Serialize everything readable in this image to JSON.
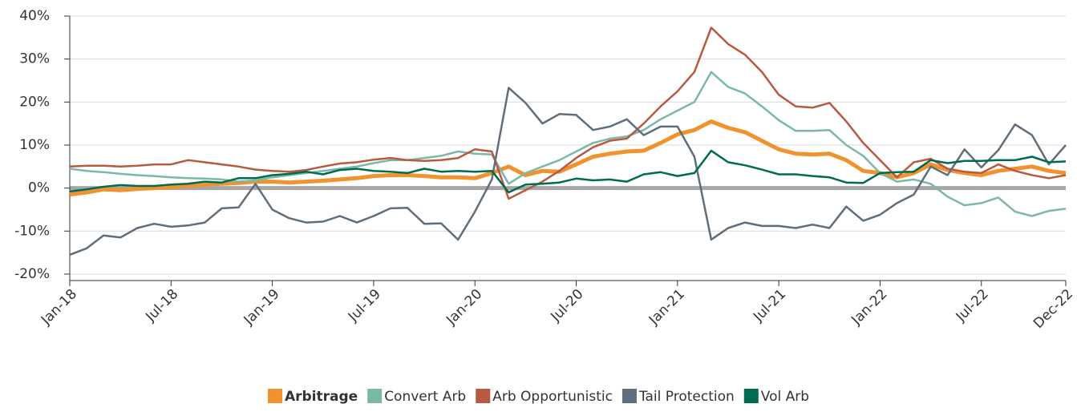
{
  "chart_data": {
    "type": "line",
    "categories": [
      "Jan-18",
      null,
      null,
      null,
      null,
      null,
      "Jul-18",
      null,
      null,
      null,
      null,
      null,
      "Jan-19",
      null,
      null,
      null,
      null,
      null,
      "Jul-19",
      null,
      null,
      null,
      null,
      null,
      "Jan-20",
      null,
      null,
      null,
      null,
      null,
      "Jul-20",
      null,
      null,
      null,
      null,
      null,
      "Jan-21",
      null,
      null,
      null,
      null,
      null,
      "Jul-21",
      null,
      null,
      null,
      null,
      null,
      "Jan-22",
      null,
      null,
      null,
      null,
      null,
      "Jul-22",
      null,
      null,
      null,
      null,
      "Dec-22"
    ],
    "ylim": [
      -21.5,
      40
    ],
    "yticks": [
      {
        "value": -20,
        "label": "-20%"
      },
      {
        "value": -10,
        "label": "-10%"
      },
      {
        "value": 0,
        "label": "0%"
      },
      {
        "value": 10,
        "label": "10%"
      },
      {
        "value": 20,
        "label": "20%"
      },
      {
        "value": 30,
        "label": "30%"
      },
      {
        "value": 40,
        "label": "40%"
      }
    ],
    "grid": true,
    "legend": "bottom",
    "series": [
      {
        "name": "Arbitrage",
        "color": "#f0922e",
        "width": 5,
        "values": [
          -1.5,
          -1,
          -0.3,
          -0.5,
          -0.2,
          0,
          0.2,
          0.5,
          0.8,
          1,
          1.2,
          1.5,
          1.5,
          1.3,
          1.5,
          1.7,
          2,
          2.3,
          2.8,
          3,
          3,
          2.8,
          2.5,
          2.5,
          2.3,
          3.5,
          5,
          3,
          4,
          3.8,
          5.5,
          7.3,
          8,
          8.5,
          8.7,
          10.5,
          12.5,
          13.5,
          15.5,
          14,
          13,
          11,
          9,
          8,
          7.8,
          8,
          6.5,
          4,
          3.5,
          2.5,
          3.5,
          5.5,
          4.2,
          3.5,
          3,
          4,
          4.5,
          5,
          4,
          3.5
        ]
      },
      {
        "name": "Convert Arb",
        "color": "#7ab8a8",
        "width": 2.5,
        "values": [
          4.5,
          4,
          3.7,
          3.3,
          3,
          2.8,
          2.5,
          2.3,
          2.2,
          2,
          1.5,
          1.8,
          2.5,
          3,
          3.5,
          4,
          4.5,
          5,
          5.8,
          6.5,
          6.5,
          7,
          7.5,
          8.5,
          8,
          7.8,
          1,
          3.5,
          5,
          6.5,
          8.5,
          10.5,
          11.5,
          12,
          13.5,
          16,
          18,
          20,
          27,
          23.5,
          22,
          19,
          15.8,
          13.3,
          13.3,
          13.5,
          10,
          7.5,
          3.5,
          1.5,
          2,
          1,
          -2,
          -4,
          -3.5,
          -2.2,
          -5.5,
          -6.5,
          -5.3,
          -4.8
        ]
      },
      {
        "name": "Arb Opportunistic",
        "color": "#b85a40",
        "width": 2.5,
        "values": [
          5,
          5.2,
          5.2,
          5,
          5.2,
          5.5,
          5.5,
          6.5,
          6,
          5.5,
          5,
          4.3,
          4,
          3.8,
          4.2,
          5,
          5.7,
          6,
          6.6,
          7,
          6.5,
          6.3,
          6.5,
          7,
          9,
          8.5,
          -2.5,
          -0.5,
          1.5,
          4,
          7,
          9.5,
          11,
          11.5,
          15,
          19,
          22.5,
          27,
          37.3,
          33.5,
          31,
          27,
          21.7,
          19,
          18.7,
          19.8,
          15.5,
          10.5,
          6.5,
          2.5,
          6,
          6.8,
          4.5,
          3.8,
          3.5,
          5.5,
          4,
          3,
          2.3,
          3
        ]
      },
      {
        "name": "Tail Protection",
        "color": "#5f6e7a",
        "width": 2.5,
        "values": [
          -15.5,
          -14,
          -11,
          -11.5,
          -9.3,
          -8.3,
          -9,
          -8.7,
          -8,
          -4.7,
          -4.5,
          1,
          -5,
          -7,
          -8,
          -7.8,
          -6.5,
          -8,
          -6.5,
          -4.7,
          -4.6,
          -8.3,
          -8.2,
          -12,
          -5.5,
          2,
          23.3,
          19.8,
          15,
          17.2,
          17,
          13.5,
          14.3,
          16,
          12.3,
          14.3,
          14.3,
          7.3,
          -12,
          -9.3,
          -8,
          -8.8,
          -8.8,
          -9.3,
          -8.5,
          -9.3,
          -4.3,
          -7.6,
          -6.2,
          -3.5,
          -1.5,
          5,
          3,
          9,
          4.8,
          8.8,
          14.8,
          12.3,
          5.5,
          10
        ]
      },
      {
        "name": "Vol Arb",
        "color": "#006b4f",
        "width": 2.5,
        "values": [
          -0.8,
          -0.3,
          0.3,
          0.7,
          0.5,
          0.5,
          0.8,
          1,
          1.5,
          1.3,
          2.3,
          2.3,
          3,
          3.3,
          3.8,
          3.2,
          4.2,
          4.5,
          4,
          3.8,
          3.5,
          4.5,
          3.8,
          4,
          3.8,
          4,
          -1,
          0.8,
          1,
          1.3,
          2.2,
          1.8,
          2,
          1.5,
          3.2,
          3.7,
          2.8,
          3.5,
          8.7,
          6,
          5.3,
          4.3,
          3.2,
          3.2,
          2.8,
          2.5,
          1.3,
          1.2,
          3.5,
          3.7,
          3.8,
          6.5,
          5.8,
          6.3,
          6.3,
          6.5,
          6.5,
          7.3,
          6,
          6.2
        ]
      }
    ]
  }
}
